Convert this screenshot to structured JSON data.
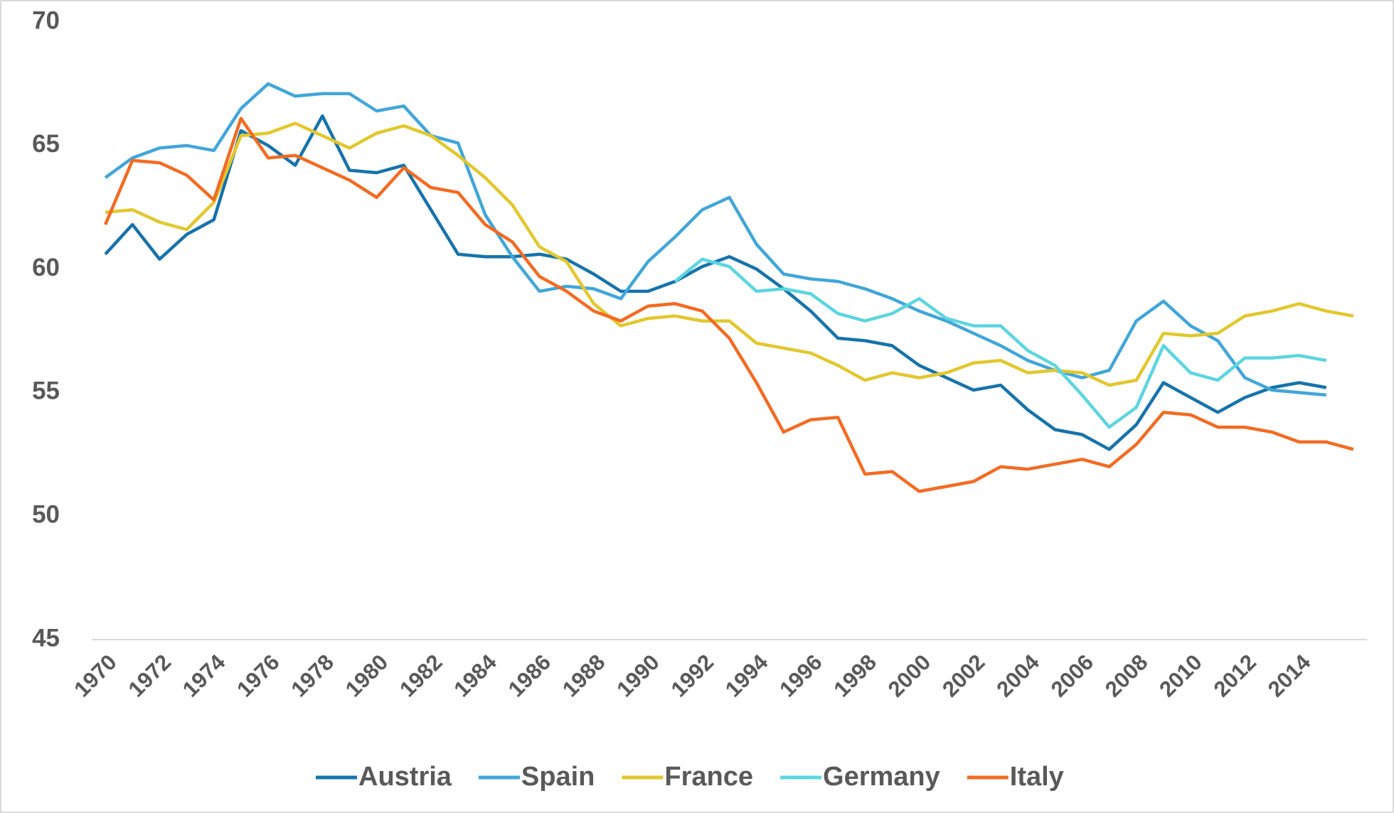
{
  "chart_data": {
    "type": "line",
    "categories": [
      1970,
      null,
      1972,
      null,
      1974,
      null,
      1976,
      null,
      1978,
      null,
      1980,
      null,
      1982,
      null,
      1984,
      null,
      1986,
      null,
      1988,
      null,
      1990,
      null,
      1992,
      null,
      1994,
      null,
      1996,
      null,
      1998,
      null,
      2000,
      null,
      2002,
      null,
      2004,
      null,
      2006,
      null,
      2008,
      null,
      2010,
      null,
      2012,
      null,
      2014,
      null,
      null
    ],
    "series": [
      {
        "name": "Austria",
        "color": "#1673aa",
        "values": [
          60.6,
          61.8,
          60.4,
          61.4,
          62.0,
          65.6,
          65.0,
          64.2,
          66.2,
          64.0,
          63.9,
          64.2,
          62.4,
          60.6,
          60.5,
          60.5,
          60.6,
          60.4,
          59.8,
          59.1,
          59.1,
          59.5,
          60.1,
          60.5,
          60.0,
          59.2,
          58.3,
          57.2,
          57.1,
          56.9,
          56.1,
          55.6,
          55.1,
          55.3,
          54.3,
          53.5,
          53.3,
          52.7,
          53.7,
          55.4,
          54.8,
          54.2,
          54.8,
          55.2,
          55.4,
          55.2,
          null
        ]
      },
      {
        "name": "Spain",
        "color": "#41a6d9",
        "values": [
          63.7,
          64.5,
          64.9,
          65.0,
          64.8,
          66.5,
          67.5,
          67.0,
          67.1,
          67.1,
          66.4,
          66.6,
          65.4,
          65.1,
          62.2,
          60.5,
          59.1,
          59.3,
          59.2,
          58.8,
          60.3,
          61.3,
          62.4,
          62.9,
          61.0,
          59.8,
          59.6,
          59.5,
          59.2,
          58.8,
          58.3,
          57.9,
          57.4,
          56.9,
          56.3,
          55.9,
          55.6,
          55.9,
          57.9,
          58.7,
          57.7,
          57.1,
          55.6,
          55.1,
          55.0,
          54.9,
          null
        ]
      },
      {
        "name": "France",
        "color": "#e2c72d",
        "values": [
          62.3,
          62.4,
          61.9,
          61.6,
          62.7,
          65.4,
          65.5,
          65.9,
          65.4,
          64.9,
          65.5,
          65.8,
          65.4,
          64.6,
          63.7,
          62.6,
          60.9,
          60.3,
          58.6,
          57.7,
          58.0,
          58.1,
          57.9,
          57.9,
          57.0,
          56.8,
          56.6,
          56.1,
          55.5,
          55.8,
          55.6,
          55.8,
          56.2,
          56.3,
          55.8,
          55.9,
          55.8,
          55.3,
          55.5,
          57.4,
          57.3,
          57.4,
          58.1,
          58.3,
          58.6,
          58.3,
          58.1
        ]
      },
      {
        "name": "Germany",
        "color": "#5cd5df",
        "values": [
          null,
          null,
          null,
          null,
          null,
          null,
          null,
          null,
          null,
          null,
          null,
          null,
          null,
          null,
          null,
          null,
          null,
          null,
          null,
          null,
          null,
          59.5,
          60.4,
          60.1,
          59.1,
          59.2,
          59.0,
          58.2,
          57.9,
          58.2,
          58.8,
          58.0,
          57.7,
          57.7,
          56.7,
          56.1,
          54.9,
          53.6,
          54.4,
          56.9,
          55.8,
          55.5,
          56.4,
          56.4,
          56.5,
          56.3,
          null
        ]
      },
      {
        "name": "Italy",
        "color": "#f26b22",
        "values": [
          61.8,
          64.4,
          64.3,
          63.8,
          62.8,
          66.1,
          64.5,
          64.6,
          64.1,
          63.6,
          62.9,
          64.1,
          63.3,
          63.1,
          61.8,
          61.1,
          59.7,
          59.1,
          58.3,
          57.9,
          58.5,
          58.6,
          58.3,
          57.2,
          55.4,
          53.4,
          53.9,
          54.0,
          51.7,
          51.8,
          51.0,
          51.2,
          51.4,
          52.0,
          51.9,
          52.1,
          52.3,
          52.0,
          52.9,
          54.2,
          54.1,
          53.6,
          53.6,
          53.4,
          53.0,
          53.0,
          52.7
        ]
      }
    ],
    "ylim": [
      45,
      70
    ],
    "yticks": [
      45,
      50,
      55,
      60,
      65,
      70
    ],
    "grid": false,
    "legend": "bottom"
  }
}
